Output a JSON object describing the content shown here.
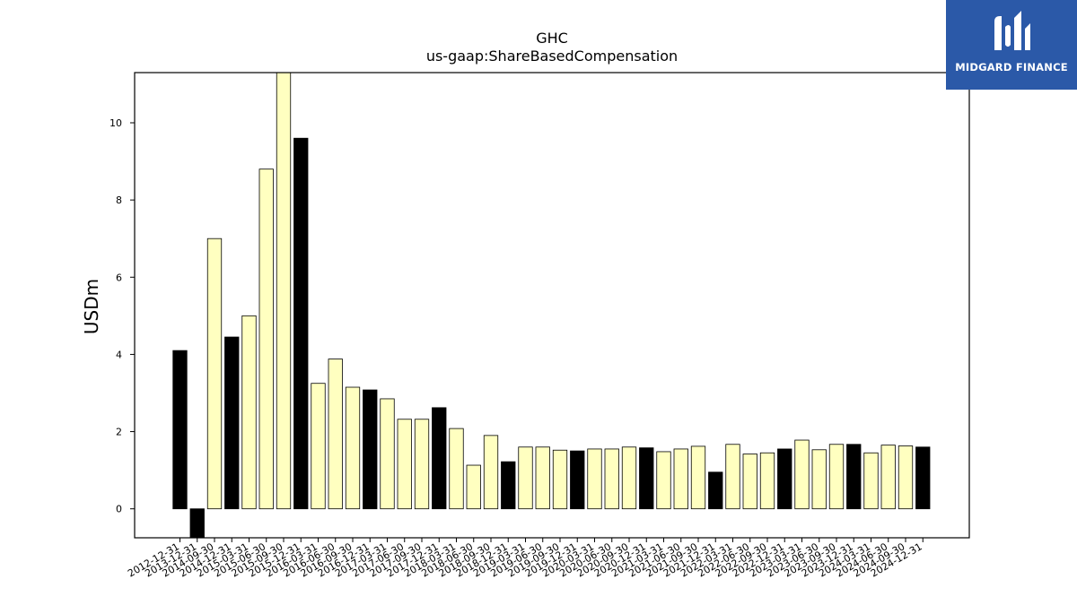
{
  "logo": {
    "text": "MIDGARD FINANCE",
    "icon": "midgard-m-icon",
    "background": "#2b59a8"
  },
  "chart_data": {
    "type": "bar",
    "title": "GHC",
    "subtitle": "us-gaap:ShareBasedCompensation",
    "xlabel": "",
    "ylabel": "USDm",
    "ylim": [
      -0.75,
      11.3
    ],
    "yticks": [
      0,
      2,
      4,
      6,
      8,
      10
    ],
    "grid": false,
    "colors": {
      "yellow": "#ffffc0",
      "black": "#000000",
      "edge": "#000000"
    },
    "categories": [
      "2012-12-31",
      "2013-12-31",
      "2014-09-30",
      "2014-12-31",
      "2015-03-31",
      "2015-06-30",
      "2015-09-30",
      "2015-12-31",
      "2016-03-31",
      "2016-06-30",
      "2016-09-30",
      "2016-12-31",
      "2017-03-31",
      "2017-06-30",
      "2017-09-30",
      "2017-12-31",
      "2018-03-31",
      "2018-06-30",
      "2018-09-30",
      "2018-12-31",
      "2019-03-31",
      "2019-06-30",
      "2019-09-30",
      "2019-12-31",
      "2020-03-31",
      "2020-06-30",
      "2020-09-30",
      "2020-12-31",
      "2021-03-31",
      "2021-06-30",
      "2021-09-30",
      "2021-12-31",
      "2022-03-31",
      "2022-06-30",
      "2022-09-30",
      "2022-12-31",
      "2023-03-31",
      "2023-06-30",
      "2023-09-30",
      "2023-12-31",
      "2024-03-31",
      "2024-06-30",
      "2024-09-30",
      "2024-12-31"
    ],
    "values": [
      4.1,
      -0.9,
      7.0,
      4.45,
      5.0,
      8.8,
      11.4,
      9.6,
      3.25,
      3.88,
      3.15,
      3.08,
      2.85,
      2.32,
      2.32,
      2.62,
      2.08,
      1.13,
      1.9,
      1.22,
      1.6,
      1.6,
      1.52,
      1.5,
      1.55,
      1.55,
      1.6,
      1.58,
      1.48,
      1.55,
      1.62,
      0.95,
      1.67,
      1.42,
      1.45,
      1.55,
      1.78,
      1.53,
      1.67,
      1.67,
      1.45,
      1.65,
      1.63,
      1.6
    ],
    "bar_colors": [
      "black",
      "black",
      "yellow",
      "black",
      "yellow",
      "yellow",
      "yellow",
      "black",
      "yellow",
      "yellow",
      "yellow",
      "black",
      "yellow",
      "yellow",
      "yellow",
      "black",
      "yellow",
      "yellow",
      "yellow",
      "black",
      "yellow",
      "yellow",
      "yellow",
      "black",
      "yellow",
      "yellow",
      "yellow",
      "black",
      "yellow",
      "yellow",
      "yellow",
      "black",
      "yellow",
      "yellow",
      "yellow",
      "black",
      "yellow",
      "yellow",
      "yellow",
      "black",
      "yellow",
      "yellow",
      "yellow",
      "black"
    ]
  }
}
